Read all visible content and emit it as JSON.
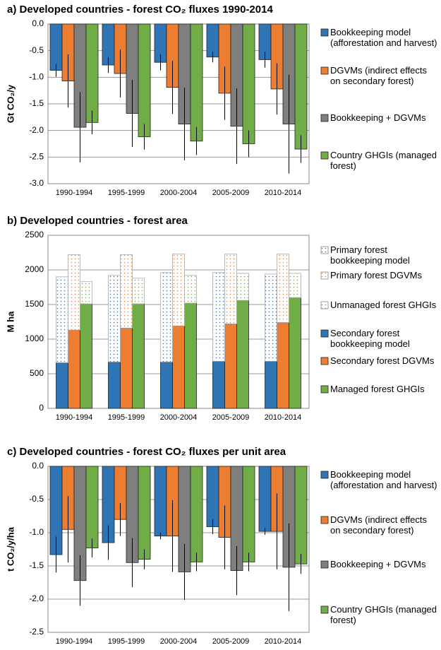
{
  "chart_data": [
    {
      "type": "bar",
      "title": "a) Developed countries - forest CO₂ fluxes 1990-2014",
      "y_label": "Gt CO₂/y",
      "categories": [
        "1990-1994",
        "1995-1999",
        "2000-2004",
        "2005-2009",
        "2010-2014"
      ],
      "series": [
        {
          "name": "Bookkeeping model (afforestation and harvest)",
          "color": "#2f75b5",
          "values": [
            -0.87,
            -0.77,
            -0.72,
            -0.62,
            -0.67
          ],
          "errors": [
            0.12,
            0.15,
            0.15,
            0.1,
            0.15
          ]
        },
        {
          "name": "DGVMs (indirect effects on secondary forest)",
          "color": "#ed7d31",
          "values": [
            -1.07,
            -0.93,
            -1.19,
            -1.3,
            -1.22
          ],
          "errors": [
            0.5,
            0.45,
            0.5,
            0.5,
            0.48
          ]
        },
        {
          "name": "Bookkeeping + DGVMs",
          "color": "#7f7f7f",
          "values": [
            -1.94,
            -1.68,
            -1.88,
            -1.92,
            -1.88
          ],
          "errors": [
            0.66,
            0.63,
            0.68,
            0.71,
            0.93
          ]
        },
        {
          "name": "Country GHGIs (managed forest)",
          "color": "#70ad47",
          "values": [
            -1.85,
            -2.12,
            -2.2,
            -2.25,
            -2.35
          ],
          "errors": [
            0.22,
            0.24,
            0.26,
            0.25,
            0.26
          ]
        }
      ],
      "ylim": [
        -3,
        0
      ],
      "yticks": [
        {
          "value": 0,
          "label": "0.0"
        },
        -0.5,
        {
          "value": -1,
          "label": "-1.0"
        },
        -1.5,
        {
          "value": -2,
          "label": "-2.0"
        },
        -2.5,
        {
          "value": -3,
          "label": "-3.0"
        }
      ],
      "grid": true
    },
    {
      "type": "bar",
      "stacked": true,
      "title": "b) Developed countries - forest area",
      "y_label": "M ha",
      "categories": [
        "1990-1994",
        "1995-1999",
        "2000-2004",
        "2005-2009",
        "2010-2014"
      ],
      "series": [
        {
          "name": "Primary forest bookkeeping model",
          "color": "#2f75b5",
          "pattern": "dots",
          "stack": 0,
          "values": [
            1240,
            1250,
            1290,
            1280,
            1260
          ]
        },
        {
          "name": "Primary forest DGVMs",
          "color": "#ed7d31",
          "pattern": "dots",
          "stack": 1,
          "values": [
            1090,
            1060,
            1040,
            1010,
            990
          ]
        },
        {
          "name": "Unmanaged forest GHGIs",
          "color": "#70ad47",
          "pattern": "dots",
          "stack": 2,
          "values": [
            320,
            370,
            400,
            390,
            350
          ]
        },
        {
          "name": "Secondary forest bookkeeping model",
          "color": "#2f75b5",
          "stack": 0,
          "values": [
            660,
            670,
            670,
            680,
            680
          ]
        },
        {
          "name": "Secondary forest DGVMs",
          "color": "#ed7d31",
          "stack": 1,
          "values": [
            1130,
            1160,
            1190,
            1220,
            1240
          ]
        },
        {
          "name": "Managed forest GHGIs",
          "color": "#70ad47",
          "stack": 2,
          "values": [
            1510,
            1510,
            1520,
            1560,
            1600
          ]
        }
      ],
      "ylim": [
        0,
        2500
      ],
      "yticks": [
        0,
        500,
        1000,
        1500,
        2000,
        2500
      ],
      "grid": true
    },
    {
      "type": "bar",
      "title": "c) Developed countries - forest CO₂ fluxes per unit area",
      "y_label": "t CO₂/y/ha",
      "categories": [
        "1990-1994",
        "1995-1999",
        "2000-2004",
        "2005-2009",
        "2010-2014"
      ],
      "series": [
        {
          "name": "Bookkeeping model (afforestation and harvest)",
          "color": "#2f75b5",
          "values": [
            -1.33,
            -1.15,
            -1.05,
            -0.91,
            -0.98
          ],
          "errors": [
            0.27,
            0.26,
            0.05,
            0.11,
            0.05
          ]
        },
        {
          "name": "DGVMs (indirect effects on secondary forest)",
          "color": "#ed7d31",
          "values": [
            -0.95,
            -0.8,
            -1.05,
            -1.07,
            -0.98
          ],
          "errors": [
            0.5,
            0.25,
            0.54,
            0.48,
            0.57
          ]
        },
        {
          "name": "Bookkeeping + DGVMs",
          "color": "#7f7f7f",
          "values": [
            -1.72,
            -1.45,
            -1.59,
            -1.57,
            -1.52
          ],
          "errors": [
            0.38,
            0.37,
            0.42,
            0.37,
            0.66
          ]
        },
        {
          "name": "Country GHGIs (managed forest)",
          "color": "#70ad47",
          "values": [
            -1.23,
            -1.4,
            -1.44,
            -1.44,
            -1.47
          ],
          "errors": [
            0.14,
            0.15,
            0.14,
            0.14,
            0.15
          ]
        }
      ],
      "ylim": [
        -2.5,
        0
      ],
      "yticks": [
        {
          "value": 0,
          "label": "0.0"
        },
        -0.5,
        {
          "value": -1,
          "label": "-1.0"
        },
        -1.5,
        {
          "value": -2,
          "label": "-2.0"
        },
        -2.5
      ],
      "grid": true
    }
  ]
}
